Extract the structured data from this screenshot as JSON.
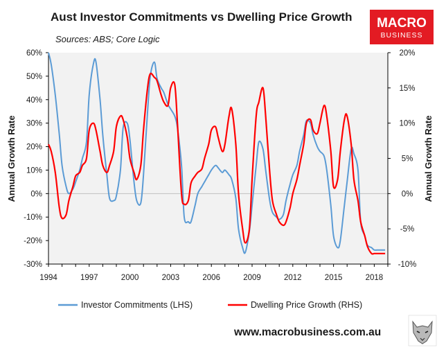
{
  "logo": {
    "line1": "MACRO",
    "line2": "BUSINESS",
    "color": "#e31b23"
  },
  "website": "www.macrobusiness.com.au",
  "mascot_icon": "wolf-head-icon",
  "chart_data": {
    "type": "line",
    "title": "Aust Investor Commitments vs Dwelling Price Growth",
    "subtitle": "Sources: ABS; Core Logic",
    "ylabel_left": "Annual Growth Rate",
    "ylabel_right": "Annual Growth Rate",
    "xlim": [
      1994,
      2019
    ],
    "ylim_left": [
      -30,
      60
    ],
    "ylim_right": [
      -10,
      20
    ],
    "x_ticks": [
      "1994",
      "1997",
      "2000",
      "2003",
      "2006",
      "2009",
      "2012",
      "2015",
      "2018"
    ],
    "x_tick_values": [
      1994,
      1997,
      2000,
      2003,
      2006,
      2009,
      2012,
      2015,
      2018
    ],
    "y_ticks_left": [
      "-30%",
      "-20%",
      "-10%",
      "0%",
      "10%",
      "20%",
      "30%",
      "40%",
      "50%",
      "60%"
    ],
    "y_tick_values_left": [
      -30,
      -20,
      -10,
      0,
      10,
      20,
      30,
      40,
      50,
      60
    ],
    "y_ticks_right": [
      "-10%",
      "-5%",
      "0%",
      "5%",
      "10%",
      "15%",
      "20%"
    ],
    "y_tick_values_right": [
      -10,
      -5,
      0,
      5,
      10,
      15,
      20
    ],
    "background": "#f2f2f2",
    "series": [
      {
        "name": "Investor Commitments (LHS)",
        "axis": "left",
        "color": "#5b9bd5",
        "x": [
          1994.0,
          1994.2,
          1994.5,
          1994.8,
          1995.0,
          1995.3,
          1995.5,
          1995.8,
          1996.0,
          1996.3,
          1996.5,
          1996.8,
          1997.0,
          1997.3,
          1997.5,
          1997.8,
          1998.0,
          1998.3,
          1998.5,
          1998.8,
          1999.0,
          1999.3,
          1999.5,
          1999.8,
          2000.0,
          2000.3,
          2000.5,
          2000.8,
          2001.0,
          2001.3,
          2001.5,
          2001.8,
          2002.0,
          2002.3,
          2002.5,
          2002.8,
          2003.0,
          2003.3,
          2003.5,
          2003.8,
          2004.0,
          2004.3,
          2004.5,
          2004.8,
          2005.0,
          2005.3,
          2005.5,
          2005.8,
          2006.0,
          2006.3,
          2006.5,
          2006.8,
          2007.0,
          2007.3,
          2007.5,
          2007.8,
          2008.0,
          2008.3,
          2008.5,
          2008.8,
          2009.0,
          2009.3,
          2009.5,
          2009.8,
          2010.0,
          2010.3,
          2010.5,
          2010.8,
          2011.0,
          2011.3,
          2011.5,
          2011.8,
          2012.0,
          2012.3,
          2012.5,
          2012.8,
          2013.0,
          2013.3,
          2013.5,
          2013.8,
          2014.0,
          2014.3,
          2014.5,
          2014.8,
          2015.0,
          2015.3,
          2015.5,
          2015.8,
          2016.0,
          2016.3,
          2016.5,
          2016.8,
          2017.0,
          2017.3,
          2017.5,
          2017.8,
          2018.0,
          2018.3,
          2018.5,
          2018.8
        ],
        "values": [
          60,
          55,
          42,
          25,
          12,
          3,
          0,
          2,
          5,
          10,
          15,
          22,
          42,
          55,
          56,
          40,
          25,
          8,
          -2,
          -3,
          -1,
          10,
          28,
          30,
          23,
          5,
          -3,
          -4,
          8,
          35,
          50,
          56,
          49,
          45,
          43,
          38,
          36,
          33,
          28,
          12,
          -10,
          -12,
          -12,
          -5,
          0,
          3,
          5,
          8,
          10,
          12,
          11,
          9,
          10,
          8,
          6,
          -2,
          -15,
          -23,
          -25,
          -16,
          -5,
          12,
          22,
          19,
          10,
          -3,
          -8,
          -10,
          -11,
          -9,
          -3,
          4,
          8,
          12,
          18,
          25,
          31,
          30,
          25,
          20,
          18,
          16,
          10,
          -5,
          -18,
          -23,
          -20,
          -5,
          5,
          19,
          17,
          10,
          -12,
          -18,
          -22,
          -23,
          -24,
          -24,
          -24,
          -24
        ]
      },
      {
        "name": "Dwelling Price Growth (RHS)",
        "axis": "right",
        "color": "#ff0000",
        "x": [
          1994.0,
          1994.2,
          1994.5,
          1994.8,
          1995.0,
          1995.3,
          1995.5,
          1995.8,
          1996.0,
          1996.3,
          1996.5,
          1996.8,
          1997.0,
          1997.3,
          1997.5,
          1997.8,
          1998.0,
          1998.3,
          1998.5,
          1998.8,
          1999.0,
          1999.3,
          1999.5,
          1999.8,
          2000.0,
          2000.3,
          2000.5,
          2000.8,
          2001.0,
          2001.3,
          2001.5,
          2001.8,
          2002.0,
          2002.3,
          2002.5,
          2002.8,
          2003.0,
          2003.3,
          2003.5,
          2003.8,
          2004.0,
          2004.3,
          2004.5,
          2004.8,
          2005.0,
          2005.3,
          2005.5,
          2005.8,
          2006.0,
          2006.3,
          2006.5,
          2006.8,
          2007.0,
          2007.3,
          2007.5,
          2007.8,
          2008.0,
          2008.3,
          2008.5,
          2008.8,
          2009.0,
          2009.3,
          2009.5,
          2009.8,
          2010.0,
          2010.3,
          2010.5,
          2010.8,
          2011.0,
          2011.3,
          2011.5,
          2011.8,
          2012.0,
          2012.3,
          2012.5,
          2012.8,
          2013.0,
          2013.3,
          2013.5,
          2013.8,
          2014.0,
          2014.3,
          2014.5,
          2014.8,
          2015.0,
          2015.3,
          2015.5,
          2015.8,
          2016.0,
          2016.3,
          2016.5,
          2016.8,
          2017.0,
          2017.3,
          2017.5,
          2017.8,
          2018.0,
          2018.3,
          2018.5,
          2018.8
        ],
        "values": [
          7,
          6,
          3,
          -2,
          -3.5,
          -3,
          -1,
          1,
          2.5,
          3,
          4,
          5,
          9,
          10,
          9,
          6,
          4,
          3,
          4,
          6,
          9.5,
          11,
          10.5,
          8,
          5,
          3,
          2,
          4,
          9,
          15,
          17,
          16.5,
          16,
          14,
          13,
          12.5,
          15,
          15.5,
          10,
          0,
          -1.5,
          -1,
          1.5,
          2.5,
          3,
          3.5,
          5,
          7,
          9,
          9.5,
          8,
          6,
          7,
          11,
          12,
          7,
          0,
          -5,
          -7,
          -5,
          2,
          11,
          13,
          15,
          11,
          3,
          -1,
          -3,
          -4,
          -4.5,
          -4,
          -2,
          0,
          2,
          4,
          7,
          10,
          10.5,
          9,
          8.5,
          10,
          12.5,
          11,
          6,
          1,
          2,
          6,
          10.5,
          11,
          7,
          2,
          -1,
          -4,
          -6,
          -7.5,
          -8.5,
          -8.5,
          -8.5,
          -8.5,
          -8.5
        ]
      }
    ],
    "legend_position": "bottom"
  }
}
